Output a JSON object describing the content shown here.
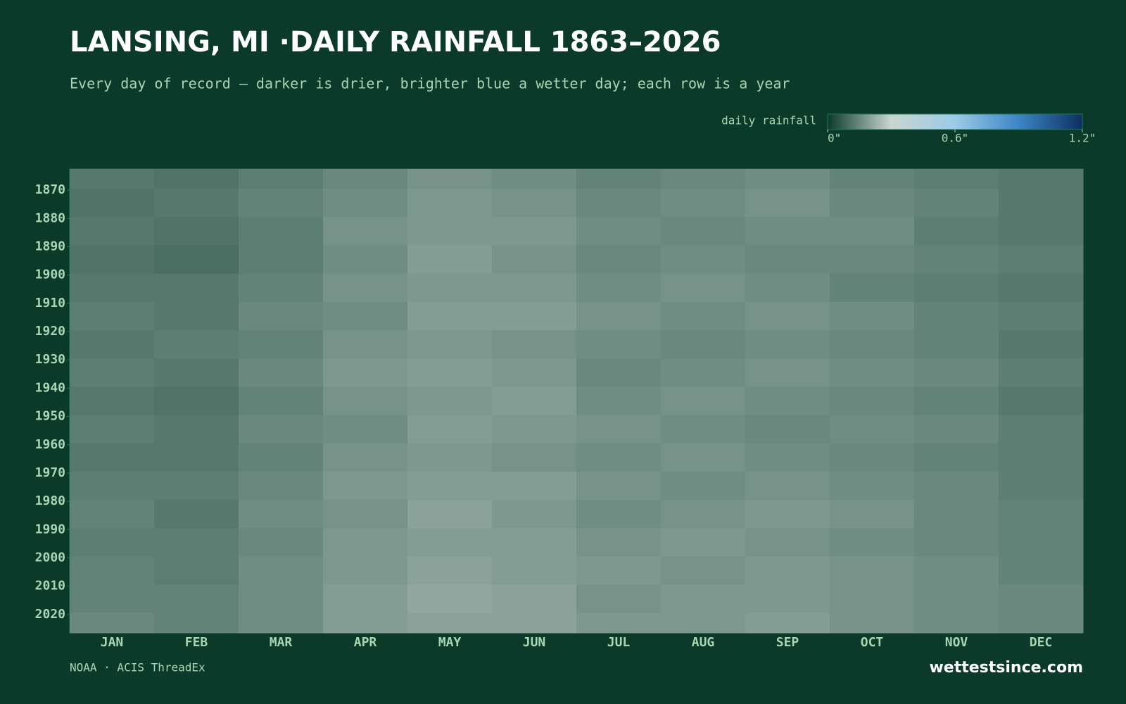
{
  "chart_data": {
    "type": "heatmap",
    "title": "LANSING, MI ·DAILY RAINFALL 1863–2026",
    "subtitle": "Every day of record — darker is drier, brighter blue a wetter day; each row is a year",
    "colorbar_label": "daily rainfall",
    "clim": [
      0,
      1.2
    ],
    "colorbar_ticks": [
      {
        "value": 0,
        "label": "0\""
      },
      {
        "value": 0.6,
        "label": "0.6\""
      },
      {
        "value": 1.2,
        "label": "1.2\""
      }
    ],
    "colormap": [
      "#0b3a2a",
      "#c9d6d2",
      "#9ccbe8",
      "#3d85c6",
      "#0d2f5e"
    ],
    "categories": [
      "JAN",
      "FEB",
      "MAR",
      "APR",
      "MAY",
      "JUN",
      "JUL",
      "AUG",
      "SEP",
      "OCT",
      "NOV",
      "DEC"
    ],
    "y": [
      1863,
      1870,
      1880,
      1890,
      1900,
      1910,
      1920,
      1930,
      1940,
      1950,
      1960,
      1970,
      1980,
      1990,
      2000,
      2010,
      2020
    ],
    "ylim": [
      1863,
      2027
    ],
    "yticks": [
      1870,
      1880,
      1890,
      1900,
      1910,
      1920,
      1930,
      1940,
      1950,
      1960,
      1970,
      1980,
      1990,
      2000,
      2010,
      2020
    ],
    "values": [
      [
        0.12,
        0.11,
        0.13,
        0.15,
        0.17,
        0.16,
        0.14,
        0.15,
        0.16,
        0.14,
        0.13,
        0.12
      ],
      [
        0.11,
        0.12,
        0.14,
        0.16,
        0.18,
        0.17,
        0.15,
        0.16,
        0.17,
        0.15,
        0.14,
        0.12
      ],
      [
        0.12,
        0.11,
        0.13,
        0.17,
        0.18,
        0.18,
        0.16,
        0.15,
        0.16,
        0.16,
        0.13,
        0.12
      ],
      [
        0.11,
        0.1,
        0.13,
        0.16,
        0.19,
        0.17,
        0.15,
        0.16,
        0.15,
        0.15,
        0.14,
        0.13
      ],
      [
        0.12,
        0.12,
        0.14,
        0.17,
        0.18,
        0.18,
        0.16,
        0.17,
        0.16,
        0.14,
        0.13,
        0.12
      ],
      [
        0.13,
        0.12,
        0.15,
        0.16,
        0.19,
        0.19,
        0.17,
        0.16,
        0.17,
        0.16,
        0.14,
        0.13
      ],
      [
        0.12,
        0.13,
        0.14,
        0.17,
        0.18,
        0.17,
        0.16,
        0.15,
        0.16,
        0.15,
        0.14,
        0.12
      ],
      [
        0.13,
        0.12,
        0.15,
        0.18,
        0.19,
        0.18,
        0.15,
        0.16,
        0.17,
        0.16,
        0.15,
        0.13
      ],
      [
        0.12,
        0.11,
        0.14,
        0.17,
        0.18,
        0.19,
        0.16,
        0.17,
        0.16,
        0.15,
        0.14,
        0.12
      ],
      [
        0.13,
        0.12,
        0.15,
        0.16,
        0.19,
        0.18,
        0.17,
        0.16,
        0.15,
        0.16,
        0.15,
        0.13
      ],
      [
        0.12,
        0.12,
        0.14,
        0.17,
        0.18,
        0.17,
        0.16,
        0.17,
        0.16,
        0.15,
        0.14,
        0.13
      ],
      [
        0.13,
        0.13,
        0.15,
        0.18,
        0.19,
        0.19,
        0.17,
        0.16,
        0.17,
        0.16,
        0.15,
        0.13
      ],
      [
        0.14,
        0.12,
        0.16,
        0.17,
        0.2,
        0.18,
        0.16,
        0.17,
        0.18,
        0.17,
        0.15,
        0.14
      ],
      [
        0.13,
        0.13,
        0.15,
        0.18,
        0.19,
        0.19,
        0.17,
        0.18,
        0.17,
        0.16,
        0.15,
        0.14
      ],
      [
        0.14,
        0.13,
        0.16,
        0.18,
        0.2,
        0.19,
        0.18,
        0.17,
        0.18,
        0.17,
        0.16,
        0.14
      ],
      [
        0.14,
        0.14,
        0.16,
        0.19,
        0.21,
        0.2,
        0.17,
        0.18,
        0.18,
        0.17,
        0.16,
        0.15
      ],
      [
        0.15,
        0.14,
        0.16,
        0.19,
        0.2,
        0.2,
        0.18,
        0.18,
        0.19,
        0.17,
        0.16,
        0.15
      ]
    ],
    "source": "NOAA · ACIS ThreadEx",
    "brand": "wettestsince.com"
  }
}
